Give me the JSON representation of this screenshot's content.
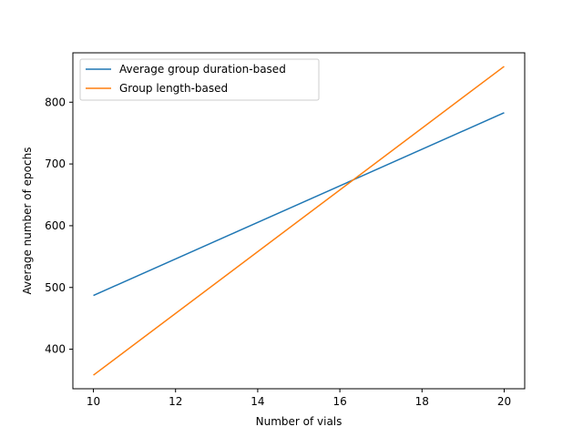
{
  "chart_data": {
    "type": "line",
    "title": "",
    "xlabel": "Number of vials",
    "ylabel": "Average number of epochs",
    "xlim": [
      9.5,
      20.5
    ],
    "ylim": [
      336,
      880
    ],
    "xticks": [
      10,
      12,
      14,
      16,
      18,
      20
    ],
    "yticks": [
      400,
      500,
      600,
      700,
      800
    ],
    "grid": false,
    "legend_position": "top-left",
    "series": [
      {
        "name": "Average group duration-based",
        "color": "#1f77b4",
        "x": [
          10,
          20
        ],
        "y": [
          487,
          783
        ]
      },
      {
        "name": "Group length-based",
        "color": "#ff7f0e",
        "x": [
          10,
          20
        ],
        "y": [
          358,
          858
        ]
      }
    ]
  }
}
